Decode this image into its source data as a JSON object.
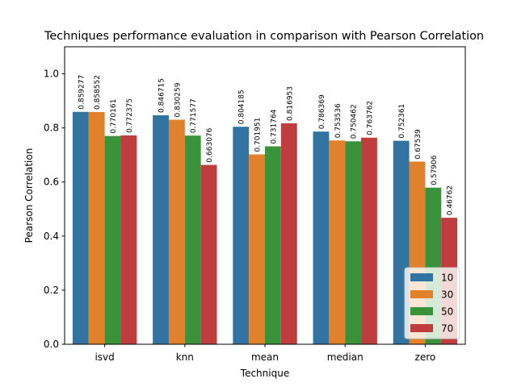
{
  "chart_data": {
    "type": "bar",
    "title": "Techniques performance evaluation in comparison with Pearson Correlation",
    "xlabel": "Technique",
    "ylabel": "Pearson Correlation",
    "ylim": [
      0,
      1.1
    ],
    "yticks": [
      0.0,
      0.2,
      0.4,
      0.6,
      0.8,
      1.0
    ],
    "ytick_labels": [
      "0.0",
      "0.2",
      "0.4",
      "0.6",
      "0.8",
      "1.0"
    ],
    "categories": [
      "isvd",
      "knn",
      "mean",
      "median",
      "zero"
    ],
    "series": [
      {
        "name": "10",
        "color": "#3274a1",
        "values": [
          0.859277,
          0.846715,
          0.804185,
          0.786369,
          0.752361
        ],
        "labels": [
          "0.859277",
          "0.846715",
          "0.804185",
          "0.786369",
          "0.752361"
        ]
      },
      {
        "name": "30",
        "color": "#e1812c",
        "values": [
          0.858552,
          0.830259,
          0.701951,
          0.753536,
          0.67539
        ],
        "labels": [
          "0.858552",
          "0.830259",
          "0.701951",
          "0.753536",
          "0.67539"
        ]
      },
      {
        "name": "50",
        "color": "#3a923a",
        "values": [
          0.770161,
          0.771577,
          0.731764,
          0.750462,
          0.57906
        ],
        "labels": [
          "0.770161",
          "0.771577",
          "0.731764",
          "0.750462",
          "0.57906"
        ]
      },
      {
        "name": "70",
        "color": "#c03d3e",
        "values": [
          0.772375,
          0.663076,
          0.816953,
          0.763762,
          0.46762
        ],
        "labels": [
          "0.772375",
          "0.663076",
          "0.816953",
          "0.763762",
          "0.46762"
        ]
      }
    ],
    "legend_position": "lower-right",
    "grid": false
  }
}
